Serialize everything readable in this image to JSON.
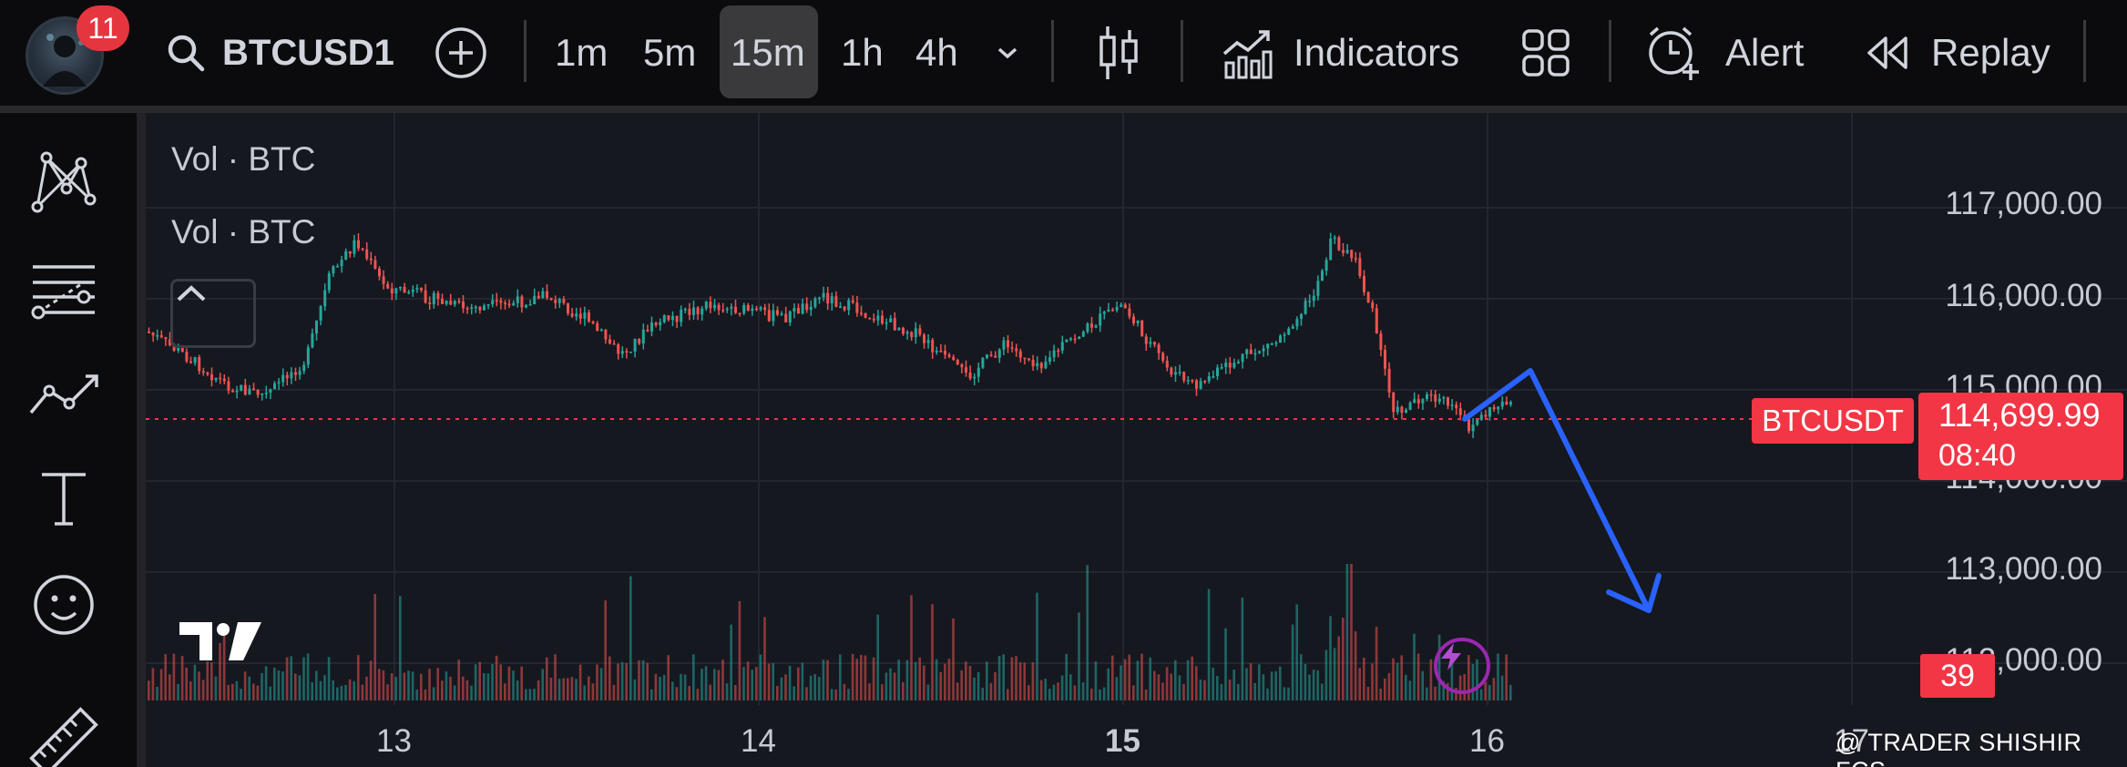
{
  "topbar": {
    "notification_count": "11",
    "symbol": "BTCUSD1",
    "timeframes": [
      "1m",
      "5m",
      "15m",
      "1h",
      "4h"
    ],
    "active_timeframe": "15m",
    "indicators_label": "Indicators",
    "alert_label": "Alert",
    "replay_label": "Replay"
  },
  "left_toolbar": {
    "tools": [
      "pattern-tool",
      "fib-retracement-tool",
      "trend-line-tool",
      "text-tool",
      "emoji-tool",
      "ruler-tool"
    ]
  },
  "chart": {
    "legend": [
      "Vol · BTC",
      "Vol · BTC"
    ],
    "y_labels": [
      "117,000.00",
      "116,000.00",
      "115,000.00",
      "114,000.00",
      "113,000.00",
      "112,000.00"
    ],
    "x_labels": [
      "13",
      "14",
      "15",
      "16",
      "17"
    ],
    "symbol_badge": "BTCUSDT",
    "last_price": "114,699.99",
    "countdown": "08:40",
    "volume_badge": "39",
    "watermark": "@ TRADER SHISHIR FCS",
    "logo_text": "TV",
    "colors": {
      "up": "#26a69a",
      "down": "#ef5350",
      "price_line": "#f23645",
      "arrow": "#2962ff",
      "background": "#161820"
    }
  }
}
